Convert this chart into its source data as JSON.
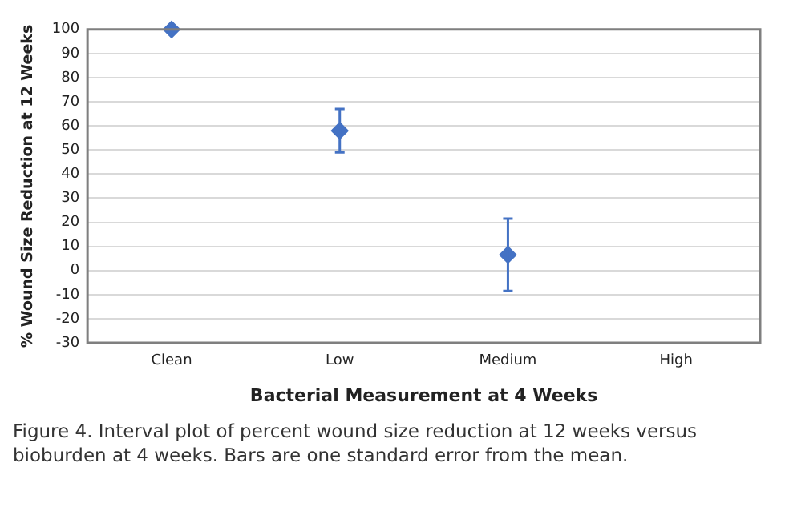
{
  "chart_data": {
    "type": "scatter",
    "xlabel": "Bacterial Measurement at 4 Weeks",
    "ylabel": "% Wound Size Reduction at 12 Weeks",
    "categories": [
      "Clean",
      "Low",
      "Medium",
      "High"
    ],
    "values": [
      100,
      58,
      6.5,
      null
    ],
    "errors": [
      null,
      [
        49,
        67
      ],
      [
        -8.5,
        21.5
      ],
      null
    ],
    "color": "#4472c4",
    "marker": "diamond",
    "grid": "y",
    "ylim": [
      -30,
      100
    ],
    "yticks": [
      -30,
      -20,
      -10,
      0,
      10,
      20,
      30,
      40,
      50,
      60,
      70,
      80,
      90,
      100
    ],
    "annotations": [
      "Figure 4. Interval plot of percent wound size reduction at 12 weeks versus bioburden at 4 weeks. Bars are one standard error from the mean."
    ]
  }
}
